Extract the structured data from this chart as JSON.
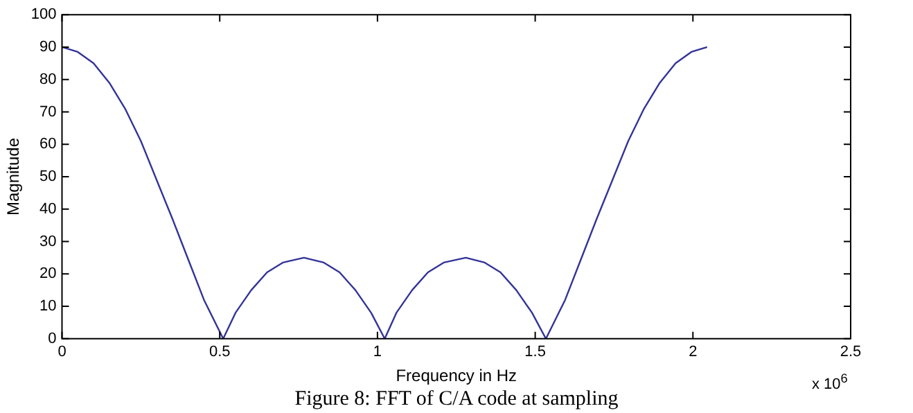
{
  "chart_data": {
    "type": "line",
    "xlabel": "Frequency in Hz",
    "ylabel": "Magnitude",
    "annotations": [
      "x 10$^{6}$",
      "Figure 8: FFT of C/A code at sampling"
    ],
    "xlim": [
      0,
      2.5
    ],
    "xticks": [
      0,
      0.5,
      1,
      1.5,
      2,
      2.5
    ],
    "ylim": [
      0,
      100
    ],
    "yticks": [
      0,
      10,
      20,
      30,
      40,
      50,
      60,
      70,
      80,
      90,
      100
    ],
    "grid": false,
    "legend": false,
    "marker": "none",
    "line_style": "solid",
    "series": [
      {
        "color": "#333399",
        "x": [
          0,
          0.05,
          0.1,
          0.15,
          0.2,
          0.25,
          0.3,
          0.35,
          0.4,
          0.45,
          0.511,
          0.55,
          0.6,
          0.65,
          0.7,
          0.767,
          0.83,
          0.88,
          0.93,
          0.98,
          1.023,
          1.06,
          1.11,
          1.16,
          1.21,
          1.28,
          1.34,
          1.39,
          1.44,
          1.49,
          1.534,
          1.595,
          1.645,
          1.695,
          1.745,
          1.795,
          1.845,
          1.895,
          1.945,
          1.995,
          2.045
        ],
        "values": [
          90,
          88.5,
          85,
          79,
          71,
          61,
          49,
          37,
          24.5,
          12,
          0,
          8,
          15,
          20.5,
          23.5,
          25,
          23.5,
          20.5,
          15,
          8,
          0,
          8,
          15,
          20.5,
          23.5,
          25,
          23.5,
          20.5,
          15,
          8,
          0,
          12,
          24.5,
          37,
          49,
          61,
          71,
          79,
          85,
          88.5,
          90
        ]
      }
    ]
  }
}
